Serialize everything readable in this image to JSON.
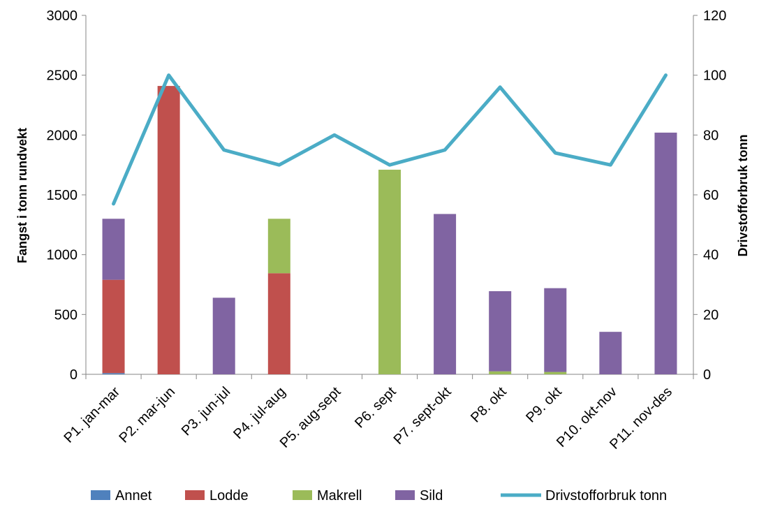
{
  "chart_data": {
    "type": "bar",
    "stacked": true,
    "categories": [
      "P1. jan-mar",
      "P2. mar-jun",
      "P3. jun-jul",
      "P4. jul-aug",
      "P5. aug-sept",
      "P6. sept",
      "P7. sept-okt",
      "P8. okt",
      "P9. okt",
      "P10. okt-nov",
      "P11. nov-des"
    ],
    "series": [
      {
        "name": "Annet",
        "color": "#4f81bd",
        "values": [
          10,
          0,
          0,
          0,
          0,
          0,
          0,
          0,
          0,
          0,
          0
        ]
      },
      {
        "name": "Lodde",
        "color": "#c0504d",
        "values": [
          780,
          2410,
          0,
          845,
          0,
          0,
          0,
          0,
          0,
          0,
          0
        ]
      },
      {
        "name": "Makrell",
        "color": "#9bbb59",
        "values": [
          0,
          0,
          0,
          455,
          0,
          1710,
          0,
          25,
          20,
          0,
          0
        ]
      },
      {
        "name": "Sild",
        "color": "#8064a2",
        "values": [
          510,
          0,
          640,
          0,
          0,
          0,
          1340,
          670,
          700,
          355,
          2020
        ]
      }
    ],
    "line_series": {
      "name": "Drivstofforbruk tonn",
      "color": "#4bacc6",
      "axis": "right",
      "values": [
        57,
        100,
        75,
        70,
        80,
        70,
        75,
        96,
        74,
        70,
        100
      ]
    },
    "ylabel": "Fangst i tonn rundvekt",
    "y2label": "Drivstofforbruk tonn",
    "ylim": [
      0,
      3000
    ],
    "y2lim": [
      0,
      120
    ],
    "yticks": [
      0,
      500,
      1000,
      1500,
      2000,
      2500,
      3000
    ],
    "y2ticks": [
      0,
      20,
      40,
      60,
      80,
      100,
      120
    ],
    "legend": [
      "Annet",
      "Lodde",
      "Makrell",
      "Sild",
      "Drivstofforbruk tonn"
    ],
    "legend_position": "bottom",
    "grid": false
  }
}
